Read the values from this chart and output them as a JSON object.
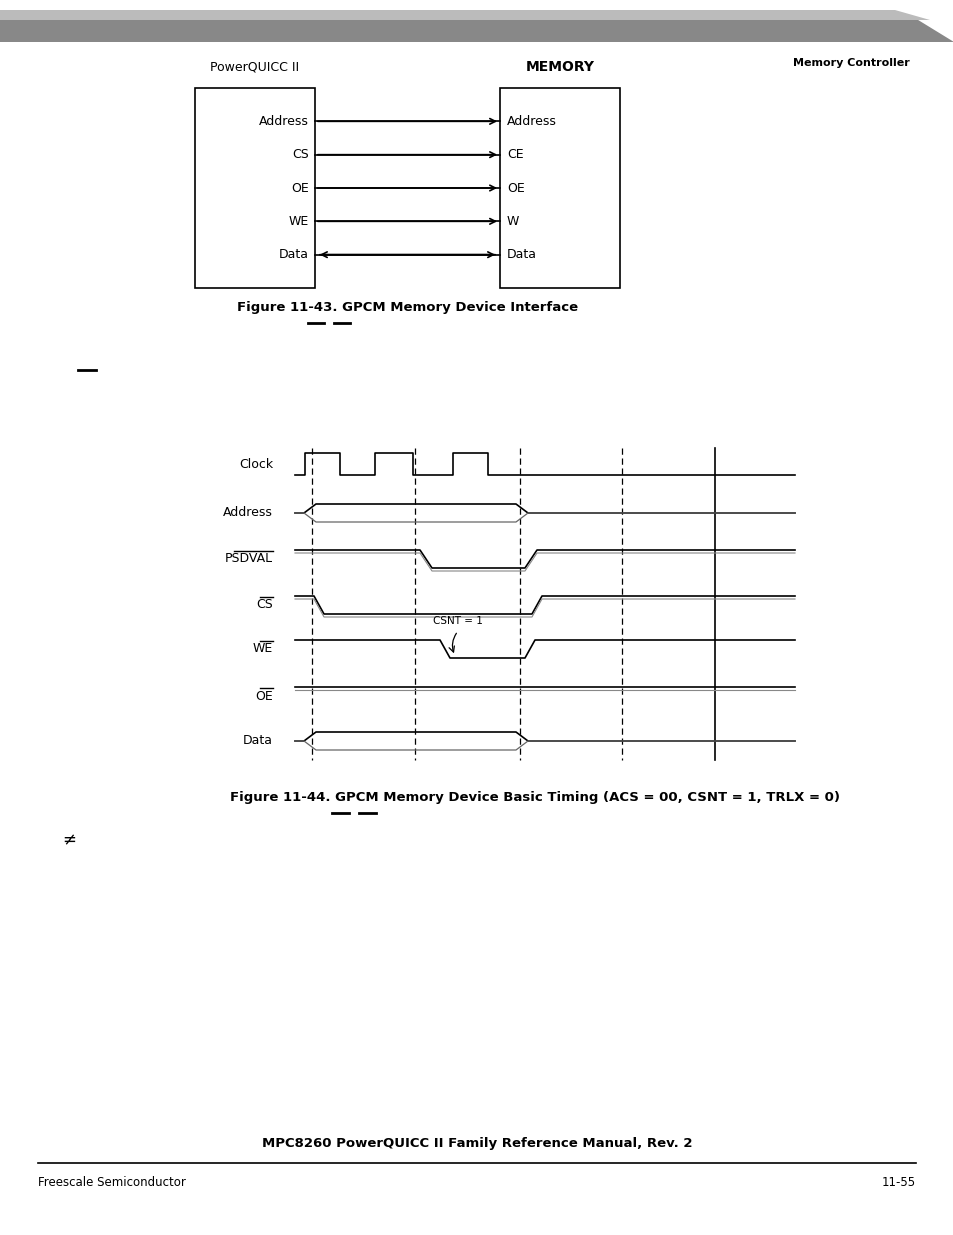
{
  "bg_color": "#ffffff",
  "header_text": "Memory Controller",
  "footer_center_text": "MPC8260 PowerQUICC II Family Reference Manual, Rev. 2",
  "footer_left_text": "Freescale Semiconductor",
  "footer_right_text": "11-55",
  "fig1_title": "PowerQUICC II",
  "fig1_memory_title": "MEMORY",
  "fig1_left_signals": [
    "Address",
    "CS",
    "OE",
    "WE",
    "Data"
  ],
  "fig1_right_signals": [
    "Address",
    "CE",
    "OE",
    "W",
    "Data"
  ],
  "fig1_caption": "Figure 11-43. GPCM Memory Device Interface",
  "fig2_caption": "Figure 11-44. GPCM Memory Device Basic Timing (ACS = 00, CSNT = 1, TRLX = 0)",
  "csnt_label": "CSNT = 1",
  "not_equal": "≠"
}
